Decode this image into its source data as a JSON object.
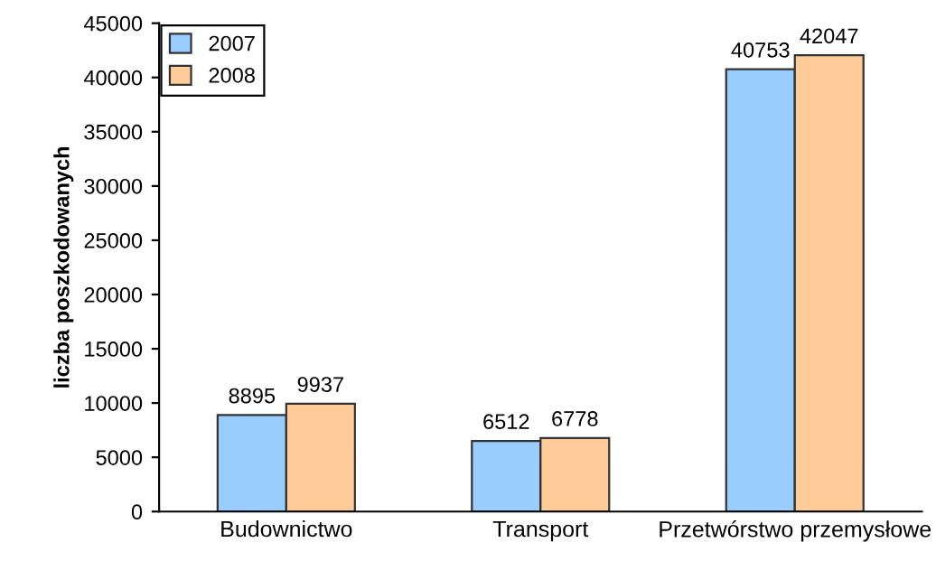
{
  "chart_data": {
    "type": "bar",
    "ylabel": "liczba poszkodowanych",
    "categories": [
      "Budownictwo",
      "Transport",
      "Przetwórstwo przemysłowe"
    ],
    "series": [
      {
        "name": "2007",
        "color": "#99ccff",
        "values": [
          8895,
          6512,
          40753
        ]
      },
      {
        "name": "2008",
        "color": "#ffcc99",
        "values": [
          9937,
          6778,
          42047
        ]
      }
    ],
    "ylim": [
      0,
      45000
    ],
    "yticks": [
      0,
      5000,
      10000,
      15000,
      20000,
      25000,
      30000,
      35000,
      40000,
      45000
    ],
    "data_labels": true,
    "legend": "top left",
    "grid": false
  }
}
